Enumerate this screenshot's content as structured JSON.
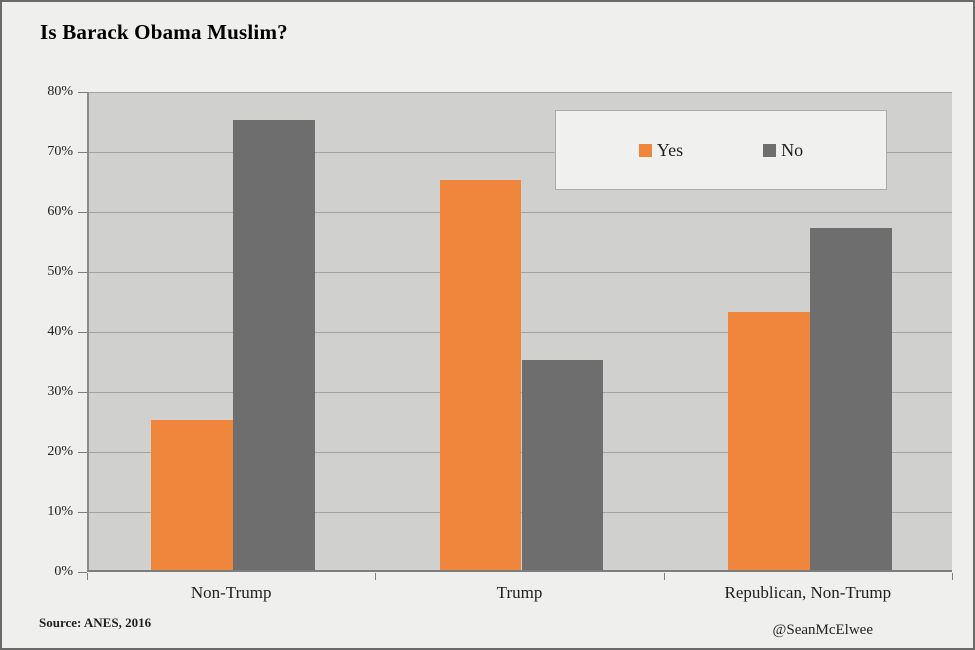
{
  "page": {
    "title": "Is Barack Obama Muslim?",
    "source": "Source: ANES, 2016",
    "attribution": "@SeanMcElwee"
  },
  "colors": {
    "yes_orange": "#ef863c",
    "no_gray": "#6e6e6e",
    "plot_background": "#d0d0cf",
    "page_background": "#efefed",
    "gridline": "#a2a2a1",
    "axis": "#7d7d7d",
    "legend_background": "#f0f0ee",
    "legend_border": "#ababab",
    "text": "#1f1f1f"
  },
  "chart_data": {
    "type": "bar",
    "title": "Is Barack Obama Muslim?",
    "categories": [
      "Non-Trump",
      "Trump",
      "Republican, Non-Trump"
    ],
    "series": [
      {
        "name": "Yes",
        "color": "#ef863c",
        "values": [
          25,
          65,
          43
        ]
      },
      {
        "name": "No",
        "color": "#6e6e6e",
        "values": [
          75,
          35,
          57
        ]
      }
    ],
    "xlabel": "",
    "ylabel": "",
    "ylim": [
      0,
      80
    ],
    "ytick_step": 10,
    "ytick_labels": [
      "0%",
      "10%",
      "20%",
      "30%",
      "40%",
      "50%",
      "60%",
      "70%",
      "80%"
    ],
    "grid": true,
    "legend_position": "inside-top-right"
  }
}
